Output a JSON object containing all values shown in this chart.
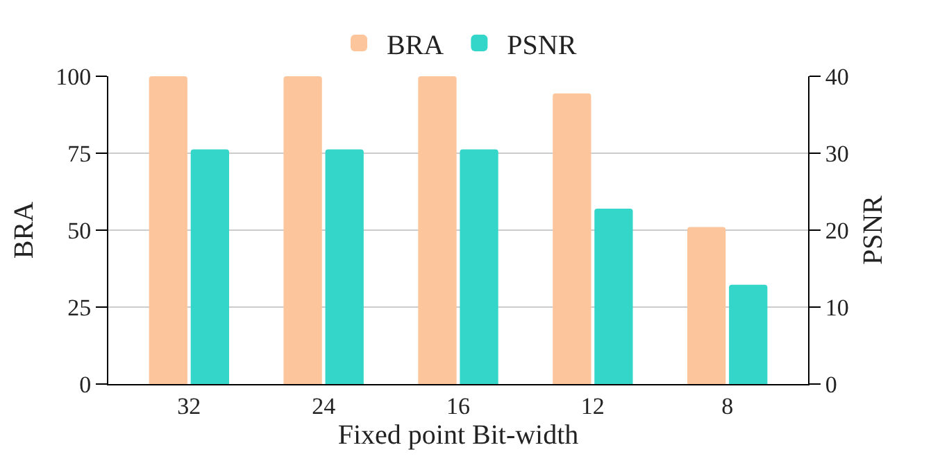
{
  "chart_data": {
    "type": "bar",
    "xlabel": "Fixed point Bit-width",
    "ylabel": "BRA",
    "y2label": "PSNR",
    "categories": [
      "32",
      "24",
      "16",
      "12",
      "8"
    ],
    "series": [
      {
        "name": "BRA",
        "color": "#fdc59b",
        "values": [
          100,
          100,
          100,
          94.4,
          51
        ]
      },
      {
        "name": "PSNR",
        "color": "#33d6c8",
        "axis": "y2",
        "values": [
          30.5,
          30.5,
          30.5,
          22.8,
          12.9
        ]
      }
    ],
    "ylim": [
      0,
      100
    ],
    "yticks": [
      0,
      25,
      50,
      75,
      100
    ],
    "y2lim": [
      0,
      40
    ],
    "y2ticks": [
      0,
      10,
      20,
      30,
      40
    ],
    "grid": "y",
    "legend": "top"
  }
}
